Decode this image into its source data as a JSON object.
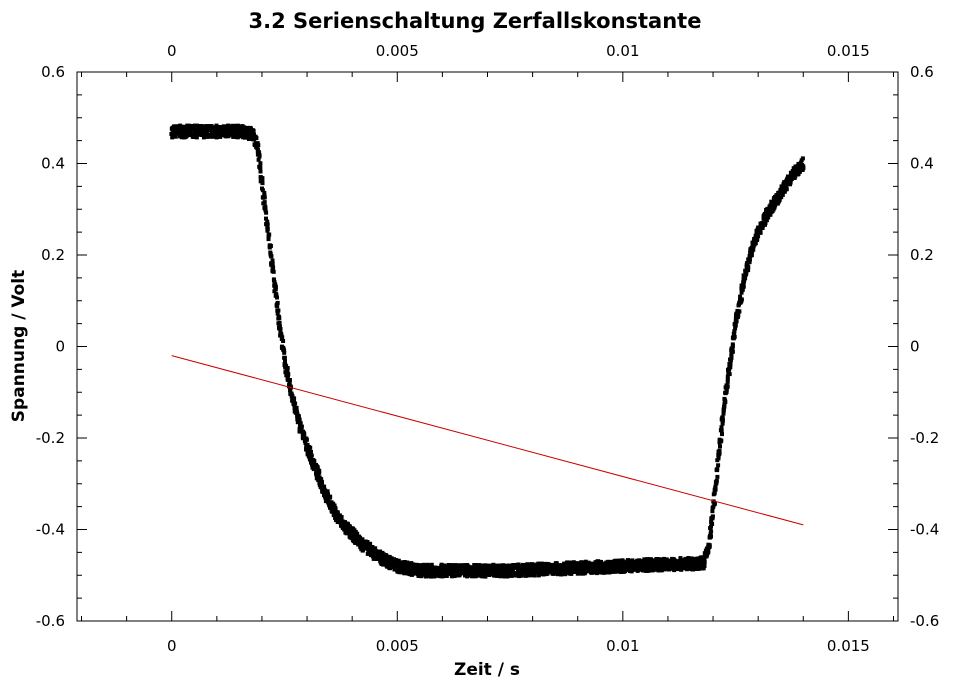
{
  "chart_data": {
    "type": "scatter",
    "title": "3.2 Serienschaltung Zerfallskonstante",
    "xlabel": "Zeit / s",
    "ylabel": "Spannung / Volt",
    "xlim": [
      -0.0021,
      0.0161
    ],
    "ylim": [
      -0.6,
      0.6
    ],
    "x_ticks": [
      0,
      0.005,
      0.01,
      0.015
    ],
    "x_tick_labels": [
      "0",
      "0.005",
      "0.01",
      "0.015"
    ],
    "y_ticks": [
      -0.6,
      -0.4,
      -0.2,
      0,
      0.2,
      0.4,
      0.6
    ],
    "y_tick_labels": [
      "-0.6",
      "-0.4",
      "-0.2",
      "0",
      "0.2",
      "0.4",
      "0.6"
    ],
    "grid": false,
    "mirror_axes": true,
    "series": [
      {
        "type": "scatter",
        "color": "#000000",
        "x": [
          0,
          0.0005,
          0.001,
          0.0015,
          0.0018,
          0.0019,
          0.002,
          0.0021,
          0.0022,
          0.0023,
          0.0024,
          0.0025,
          0.0026,
          0.0027,
          0.0028,
          0.003,
          0.0032,
          0.0034,
          0.0036,
          0.0038,
          0.004,
          0.0042,
          0.0044,
          0.0046,
          0.0048,
          0.005,
          0.0055,
          0.006,
          0.0065,
          0.007,
          0.0075,
          0.008,
          0.0085,
          0.009,
          0.0095,
          0.01,
          0.0105,
          0.011,
          0.0115,
          0.0118,
          0.0119,
          0.012,
          0.0121,
          0.0122,
          0.0123,
          0.0124,
          0.0125,
          0.0126,
          0.0127,
          0.0128,
          0.013,
          0.0132,
          0.0134,
          0.0136,
          0.0138,
          0.014
        ],
        "y": [
          0.47,
          0.47,
          0.47,
          0.47,
          0.465,
          0.44,
          0.36,
          0.28,
          0.2,
          0.12,
          0.04,
          -0.03,
          -0.08,
          -0.12,
          -0.16,
          -0.22,
          -0.27,
          -0.32,
          -0.36,
          -0.39,
          -0.41,
          -0.43,
          -0.445,
          -0.46,
          -0.47,
          -0.48,
          -0.49,
          -0.49,
          -0.49,
          -0.49,
          -0.49,
          -0.488,
          -0.486,
          -0.484,
          -0.482,
          -0.48,
          -0.478,
          -0.476,
          -0.475,
          -0.473,
          -0.44,
          -0.36,
          -0.26,
          -0.17,
          -0.09,
          -0.02,
          0.05,
          0.1,
          0.15,
          0.19,
          0.25,
          0.29,
          0.32,
          0.35,
          0.38,
          0.4
        ]
      },
      {
        "type": "line",
        "color": "#cc0000",
        "x": [
          0,
          0.014
        ],
        "y": [
          -0.02,
          -0.39
        ]
      }
    ]
  }
}
